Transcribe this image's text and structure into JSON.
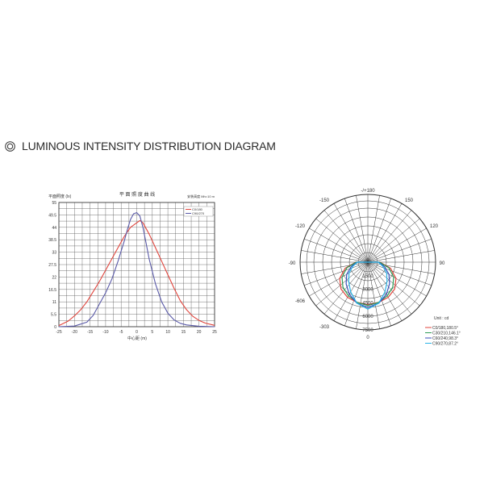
{
  "heading": {
    "icon": "double-circle-icon",
    "text": "LUMINOUS INTENSITY DISTRIBUTION DIAGRAM"
  },
  "chart_data": [
    {
      "type": "line",
      "title": "平 面 照 度 曲 线",
      "ylabel": "平面照度 (lx)",
      "xlabel": "中心距 (m)",
      "corner_note": "安装高度 Mh=10 m",
      "ylim": [
        0,
        55
      ],
      "xlim": [
        -25,
        25
      ],
      "y_ticks": [
        "0",
        "5.5",
        "11",
        "16.5",
        "22",
        "27.5",
        "33",
        "38.5",
        "44",
        "49.5",
        "55"
      ],
      "x_ticks": [
        "-25",
        "-20",
        "-15",
        "-10",
        "-5",
        "0",
        "5",
        "10",
        "15",
        "20",
        "25"
      ],
      "grid": true,
      "legend_position": "top-right",
      "series": [
        {
          "name": "C0/180",
          "color": "#e0443c",
          "x": [
            -25,
            -22,
            -20,
            -18,
            -16,
            -14,
            -12,
            -10,
            -8,
            -6,
            -4,
            -2,
            0,
            1,
            2,
            4,
            6,
            8,
            10,
            12,
            14,
            16,
            18,
            20,
            22,
            25
          ],
          "y": [
            0.5,
            2.5,
            4.8,
            7.5,
            11,
            15.5,
            20,
            25,
            30,
            35,
            40,
            44,
            46,
            47,
            46,
            41,
            35,
            29,
            23,
            17,
            11.5,
            7.5,
            4.6,
            2.8,
            1.6,
            0.6
          ]
        },
        {
          "name": "C90/270",
          "color": "#5a5aa8",
          "x": [
            -25,
            -20,
            -16,
            -14,
            -12,
            -10,
            -8,
            -6,
            -4,
            -3,
            -2,
            -1,
            0,
            1,
            2,
            3,
            4,
            6,
            8,
            10,
            12,
            14,
            16,
            20,
            25
          ],
          "y": [
            0,
            0.3,
            2,
            5,
            10,
            15,
            21,
            29,
            38,
            43,
            47.5,
            50,
            50.5,
            49,
            44,
            37,
            30,
            19,
            11,
            6,
            3,
            1.5,
            0.8,
            0.2,
            0
          ]
        }
      ]
    },
    {
      "type": "polar",
      "unit_label": "Unit : cd",
      "angle_labels": {
        "top": "-/+180",
        "upper_left": "-150",
        "upper_right": "150",
        "mid_left": "-120",
        "mid_right": "120",
        "left": "-90",
        "right": "90",
        "lower_left_angle": "-303",
        "lower_left_value": "-606",
        "bottom": "0"
      },
      "radial_labels": [
        "1500",
        "3000",
        "4500",
        "6000",
        "7500"
      ],
      "rmax": 7500,
      "angles_deg": [
        -90,
        -75,
        -60,
        -45,
        -30,
        -15,
        0,
        15,
        30,
        45,
        60,
        75,
        90
      ],
      "series": [
        {
          "name": "C0/180,180.5°",
          "color": "#e0443c",
          "values": [
            1350,
            2600,
            3600,
            4200,
            4500,
            4600,
            4700,
            4600,
            4500,
            4200,
            3600,
            2600,
            1350
          ]
        },
        {
          "name": "C30/210,146.1°",
          "color": "#2e9c56",
          "values": [
            1300,
            2400,
            3300,
            3900,
            4300,
            4600,
            4800,
            4600,
            4300,
            3900,
            3300,
            2400,
            1300
          ]
        },
        {
          "name": "C60/240,98.3°",
          "color": "#3b4fb8",
          "values": [
            1200,
            1900,
            2700,
            3400,
            4100,
            4700,
            5000,
            4700,
            4100,
            3400,
            2700,
            1900,
            1200
          ]
        },
        {
          "name": "C90/270,87.2°",
          "color": "#2ab3e6",
          "values": [
            1150,
            1700,
            2400,
            3000,
            3800,
            4700,
            5200,
            4700,
            3800,
            3000,
            2400,
            1700,
            1150
          ]
        }
      ]
    }
  ]
}
